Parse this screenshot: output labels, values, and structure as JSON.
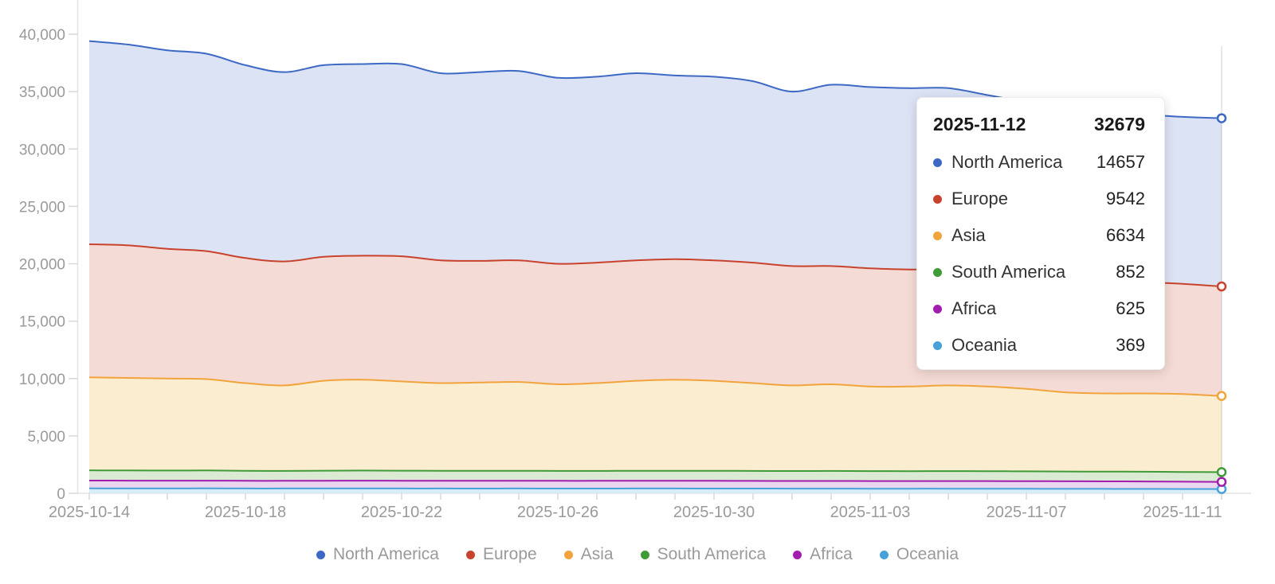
{
  "chart_data": {
    "type": "area",
    "stacked": true,
    "title": "",
    "xlabel": "",
    "ylabel": "",
    "ylim": [
      0,
      40000
    ],
    "y_tick_values": [
      0,
      5000,
      10000,
      15000,
      20000,
      25000,
      30000,
      35000,
      40000
    ],
    "y_tick_labels": [
      "0",
      "5,000",
      "10,000",
      "15,000",
      "20,000",
      "25,000",
      "30,000",
      "35,000",
      "40,000"
    ],
    "x": [
      "2025-10-14",
      "2025-10-15",
      "2025-10-16",
      "2025-10-17",
      "2025-10-18",
      "2025-10-19",
      "2025-10-20",
      "2025-10-21",
      "2025-10-22",
      "2025-10-23",
      "2025-10-24",
      "2025-10-25",
      "2025-10-26",
      "2025-10-27",
      "2025-10-28",
      "2025-10-29",
      "2025-10-30",
      "2025-10-31",
      "2025-11-01",
      "2025-11-02",
      "2025-11-03",
      "2025-11-04",
      "2025-11-05",
      "2025-11-06",
      "2025-11-07",
      "2025-11-08",
      "2025-11-09",
      "2025-11-10",
      "2025-11-11",
      "2025-11-12"
    ],
    "x_tick_label_indices": [
      0,
      4,
      8,
      12,
      16,
      20,
      24,
      28
    ],
    "x_tick_labels": [
      "2025-10-14",
      "2025-10-18",
      "2025-10-22",
      "2025-10-26",
      "2025-10-30",
      "2025-11-03",
      "2025-11-07",
      "2025-11-11"
    ],
    "grid": "off",
    "legend_position": "bottom",
    "highlight_index": 29,
    "series": [
      {
        "name": "North America",
        "line": "#3d69c5",
        "fill": "#dce3f5",
        "values": [
          17700,
          17500,
          17300,
          17200,
          16800,
          16500,
          16700,
          16700,
          16750,
          16300,
          16450,
          16500,
          16200,
          16200,
          16300,
          16000,
          16000,
          15800,
          15200,
          15800,
          15800,
          15800,
          15750,
          15300,
          15000,
          14800,
          14700,
          14600,
          14550,
          14657
        ]
      },
      {
        "name": "Europe",
        "line": "#c8432d",
        "fill": "#f5dbd5",
        "values": [
          11600,
          11550,
          11300,
          11150,
          10900,
          10800,
          10800,
          10800,
          10900,
          10700,
          10600,
          10600,
          10500,
          10500,
          10500,
          10500,
          10500,
          10500,
          10400,
          10300,
          10300,
          10200,
          10150,
          10100,
          10000,
          10000,
          9800,
          9700,
          9600,
          9542
        ]
      },
      {
        "name": "Asia",
        "line": "#f2a43c",
        "fill": "#fbedd0",
        "values": [
          8100,
          8060,
          8020,
          7960,
          7640,
          7450,
          7830,
          7920,
          7780,
          7640,
          7695,
          7740,
          7550,
          7650,
          7840,
          7935,
          7840,
          7650,
          7460,
          7555,
          7365,
          7370,
          7465,
          7375,
          7185,
          6900,
          6810,
          6820,
          6790,
          6634
        ]
      },
      {
        "name": "South America",
        "line": "#3f9b38",
        "fill": "#dbead2",
        "values": [
          890,
          885,
          880,
          885,
          870,
          865,
          875,
          880,
          875,
          870,
          870,
          870,
          865,
          865,
          870,
          875,
          875,
          870,
          865,
          870,
          865,
          860,
          865,
          860,
          855,
          850,
          850,
          850,
          850,
          852
        ]
      },
      {
        "name": "Africa",
        "line": "#a21cb0",
        "fill": "#ead6ee",
        "values": [
          680,
          680,
          675,
          675,
          670,
          665,
          670,
          675,
          675,
          670,
          670,
          670,
          670,
          670,
          670,
          670,
          670,
          665,
          665,
          665,
          665,
          665,
          665,
          665,
          665,
          660,
          655,
          650,
          635,
          625
        ]
      },
      {
        "name": "Oceania",
        "line": "#48a2d8",
        "fill": "#d8ecf8",
        "values": [
          430,
          425,
          425,
          430,
          420,
          420,
          425,
          425,
          420,
          420,
          415,
          420,
          415,
          415,
          420,
          420,
          415,
          415,
          410,
          410,
          405,
          405,
          405,
          400,
          395,
          390,
          385,
          380,
          375,
          369
        ]
      }
    ]
  },
  "tooltip": {
    "date": "2025-11-12",
    "total": "32679",
    "rows": [
      {
        "label": "North America",
        "value": "14657",
        "color": "#3d69c5"
      },
      {
        "label": "Europe",
        "value": "9542",
        "color": "#c8432d"
      },
      {
        "label": "Asia",
        "value": "6634",
        "color": "#f2a43c"
      },
      {
        "label": "South America",
        "value": "852",
        "color": "#3f9b38"
      },
      {
        "label": "Africa",
        "value": "625",
        "color": "#a21cb0"
      },
      {
        "label": "Oceania",
        "value": "369",
        "color": "#48a2d8"
      }
    ]
  },
  "style": {
    "axis_line_color": "#e3e3e3",
    "tick_color": "#d8d8d8",
    "label_color": "#9a9a9a",
    "crosshair_color": "rgba(0,0,0,0.12)",
    "marker_fill": "#ffffff"
  }
}
